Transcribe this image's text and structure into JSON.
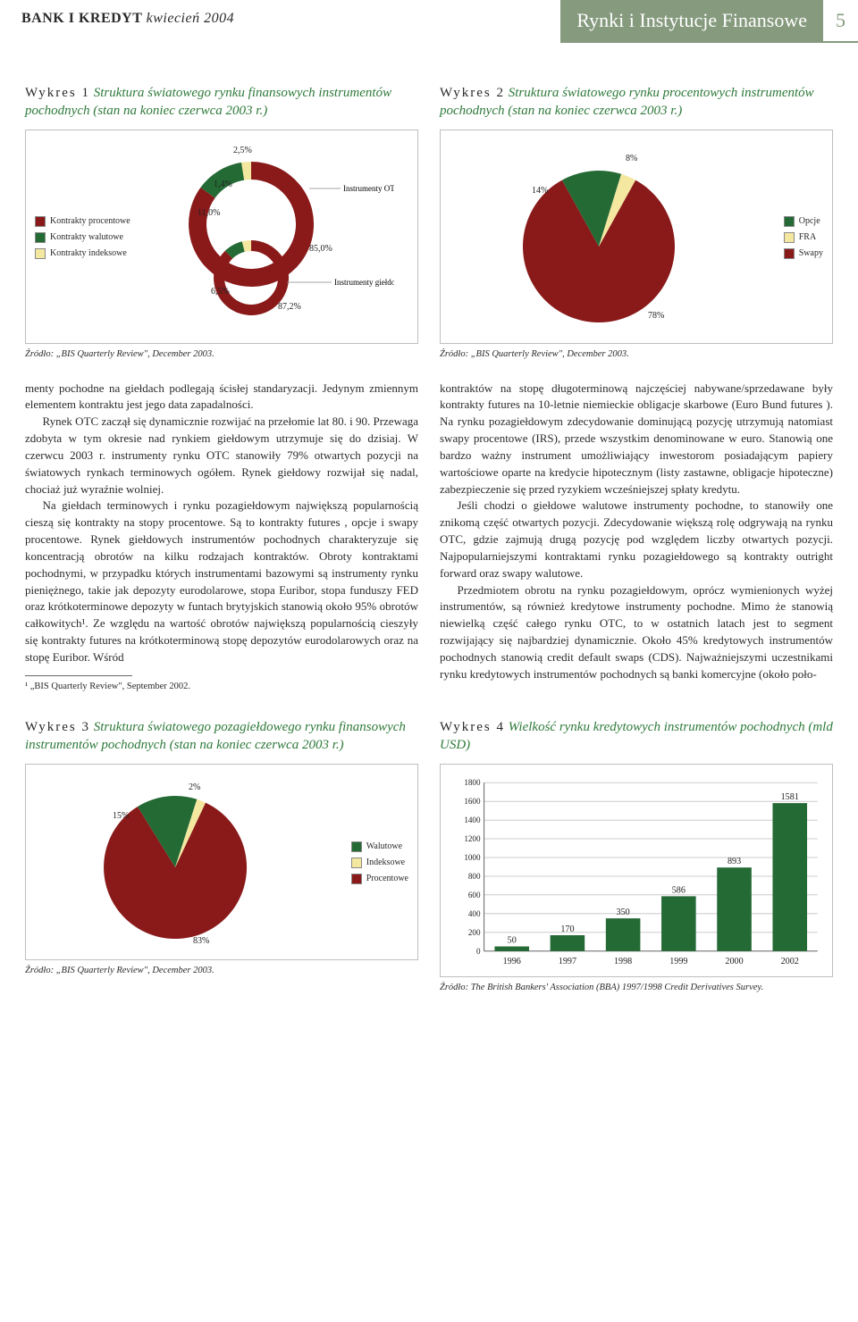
{
  "header": {
    "publication": "BANK I KREDYT",
    "issue": "kwiecień 2004",
    "section": "Rynki i Instytucje Finansowe",
    "page_number": "5",
    "colors": {
      "tab_bg": "#869a7e",
      "tab_fg": "#ffffff"
    }
  },
  "palette": {
    "green": "#246a35",
    "red": "#8a1a1a",
    "cream": "#f4e7a0",
    "grey": "#bfbfbf"
  },
  "chart1": {
    "lead": "Wykres 1",
    "title": "Struktura światowego rynku finansowych instrumentów pochodnych (stan na koniec czerwca 2003 r.)",
    "type": "nested-pie",
    "legend": [
      {
        "label": "Kontrakty procentowe",
        "color": "#8a1a1a"
      },
      {
        "label": "Kontrakty walutowe",
        "color": "#246a35"
      },
      {
        "label": "Kontrakty indeksowe",
        "color": "#f4e7a0"
      }
    ],
    "outer": {
      "procentowe": 85.0,
      "walutowe": 11.0,
      "indeksowe": 4.0,
      "labels": {
        "procentowe": "85,0%",
        "walutowe": "11,0%",
        "indeksowe": "1,4%",
        "extra": "2,5%"
      }
    },
    "inner": {
      "procentowe": 87.2,
      "walutowe": 6.5,
      "indeksowe": 6.3,
      "labels": {
        "procentowe": "87,2%",
        "walutowe": "6,5%"
      }
    },
    "callouts": {
      "otc": "Instrumenty OTC",
      "gieldowe": "Instrumenty giełdowe"
    },
    "source": "Źródło: „BIS Quarterly Review\", December 2003."
  },
  "chart2": {
    "lead": "Wykres 2",
    "title": "Struktura światowego rynku procentowych instrumentów pochodnych (stan na koniec czerwca 2003 r.)",
    "type": "pie",
    "slices": [
      {
        "label": "Opcje",
        "value": 8,
        "color": "#f4e7a0",
        "text": "8%"
      },
      {
        "label": "FRA",
        "value": 14,
        "color": "#246a35",
        "text": "14%"
      },
      {
        "label": "Swapy",
        "value": 78,
        "color": "#8a1a1a",
        "text": "78%"
      }
    ],
    "legend": [
      {
        "label": "Opcje",
        "color": "#246a35"
      },
      {
        "label": "FRA",
        "color": "#f4e7a0"
      },
      {
        "label": "Swapy",
        "color": "#8a1a1a"
      }
    ],
    "source": "Źródło: „BIS Quarterly Review\", December 2003."
  },
  "chart3": {
    "lead": "Wykres 3",
    "title": "Struktura światowego pozagiełdowego rynku finansowych instrumentów pochodnych (stan na koniec czerwca 2003 r.)",
    "type": "pie",
    "slices": [
      {
        "label": "Walutowe",
        "value": 15,
        "color": "#246a35",
        "text": "15%"
      },
      {
        "label": "Indeksowe",
        "value": 2,
        "color": "#f4e7a0",
        "text": "2%"
      },
      {
        "label": "Procentowe",
        "value": 83,
        "color": "#8a1a1a",
        "text": "83%"
      }
    ],
    "legend": [
      {
        "label": "Walutowe",
        "color": "#246a35"
      },
      {
        "label": "Indeksowe",
        "color": "#f4e7a0"
      },
      {
        "label": "Procentowe",
        "color": "#8a1a1a"
      }
    ],
    "source": "Źródło: „BIS Quarterly Review\", December 2003."
  },
  "chart4": {
    "lead": "Wykres 4",
    "title": "Wielkość rynku kredytowych instrumentów pochodnych (mld USD)",
    "type": "bar",
    "categories": [
      "1996",
      "1997",
      "1998",
      "1999",
      "2000",
      "2002"
    ],
    "values": [
      50,
      170,
      350,
      586,
      893,
      1581
    ],
    "bar_color": "#246a35",
    "ylim": [
      0,
      1800
    ],
    "ytick_step": 200,
    "grid_color": "#999999",
    "axis_color": "#666666",
    "label_fontsize": 10,
    "source": "Źródło: The British Bankers' Association (BBA) 1997/1998 Credit Derivatives Survey."
  },
  "body": {
    "left": [
      "menty pochodne na giełdach podlegają ścisłej standaryzacji. Jedynym zmiennym elementem kontraktu jest jego data zapadalności.",
      "Rynek OTC zaczął się dynamicznie rozwijać na przełomie lat 80. i 90. Przewaga zdobyta w tym okresie nad rynkiem giełdowym utrzymuje się do dzisiaj. W czerwcu 2003 r. instrumenty rynku OTC stanowiły 79% otwartych pozycji na światowych rynkach terminowych ogółem. Rynek giełdowy rozwijał się nadal, chociaż już wyraźnie wolniej.",
      "Na giełdach terminowych i rynku pozagiełdowym największą popularnością cieszą się kontrakty na stopy procentowe. Są to kontrakty futures , opcje i swapy procentowe. Rynek giełdowych instrumentów pochodnych charakteryzuje się koncentracją obrotów na kilku rodzajach kontraktów. Obroty kontraktami pochodnymi, w przypadku których instrumentami bazowymi są instrumenty rynku pieniężnego, takie jak depozyty eurodolarowe, stopa Euribor, stopa funduszy FED oraz krótkoterminowe depozyty w funtach brytyjskich stanowią około 95% obrotów całkowitych¹. Ze względu na wartość obrotów największą popularnością cieszyły się kontrakty futures na krótkoterminową stopę depozytów eurodolarowych oraz na stopę Euribor. Wśród"
    ],
    "footnote": "¹ „BIS Quarterly Review\", September 2002.",
    "right": [
      "kontraktów na stopę długoterminową najczęściej nabywane/sprzedawane były kontrakty futures na 10-letnie niemieckie obligacje skarbowe (Euro Bund futures ). Na rynku pozagiełdowym zdecydowanie dominującą pozycję utrzymują natomiast swapy procentowe (IRS), przede wszystkim denominowane w euro. Stanowią one bardzo ważny instrument umożliwiający inwestorom posiadającym papiery wartościowe oparte na kredycie hipotecznym (listy zastawne, obligacje hipoteczne) zabezpieczenie się przed ryzykiem wcześniejszej spłaty kredytu.",
      "Jeśli chodzi o giełdowe walutowe instrumenty pochodne, to stanowiły one znikomą część otwartych pozycji. Zdecydowanie większą rolę odgrywają na rynku OTC, gdzie zajmują drugą pozycję pod względem liczby otwartych pozycji. Najpopularniejszymi kontraktami rynku pozagiełdowego są kontrakty outright forward oraz swapy walutowe.",
      "Przedmiotem obrotu na rynku pozagiełdowym, oprócz wymienionych wyżej instrumentów, są również kredytowe instrumenty pochodne. Mimo że stanowią niewielką część całego rynku OTC, to w ostatnich latach jest to segment rozwijający się najbardziej dynamicznie. Około 45% kredytowych instrumentów pochodnych stanowią credit default swaps (CDS). Najważniejszymi uczestnikami rynku kredytowych instrumentów pochodnych są banki komercyjne (około poło-"
    ]
  }
}
